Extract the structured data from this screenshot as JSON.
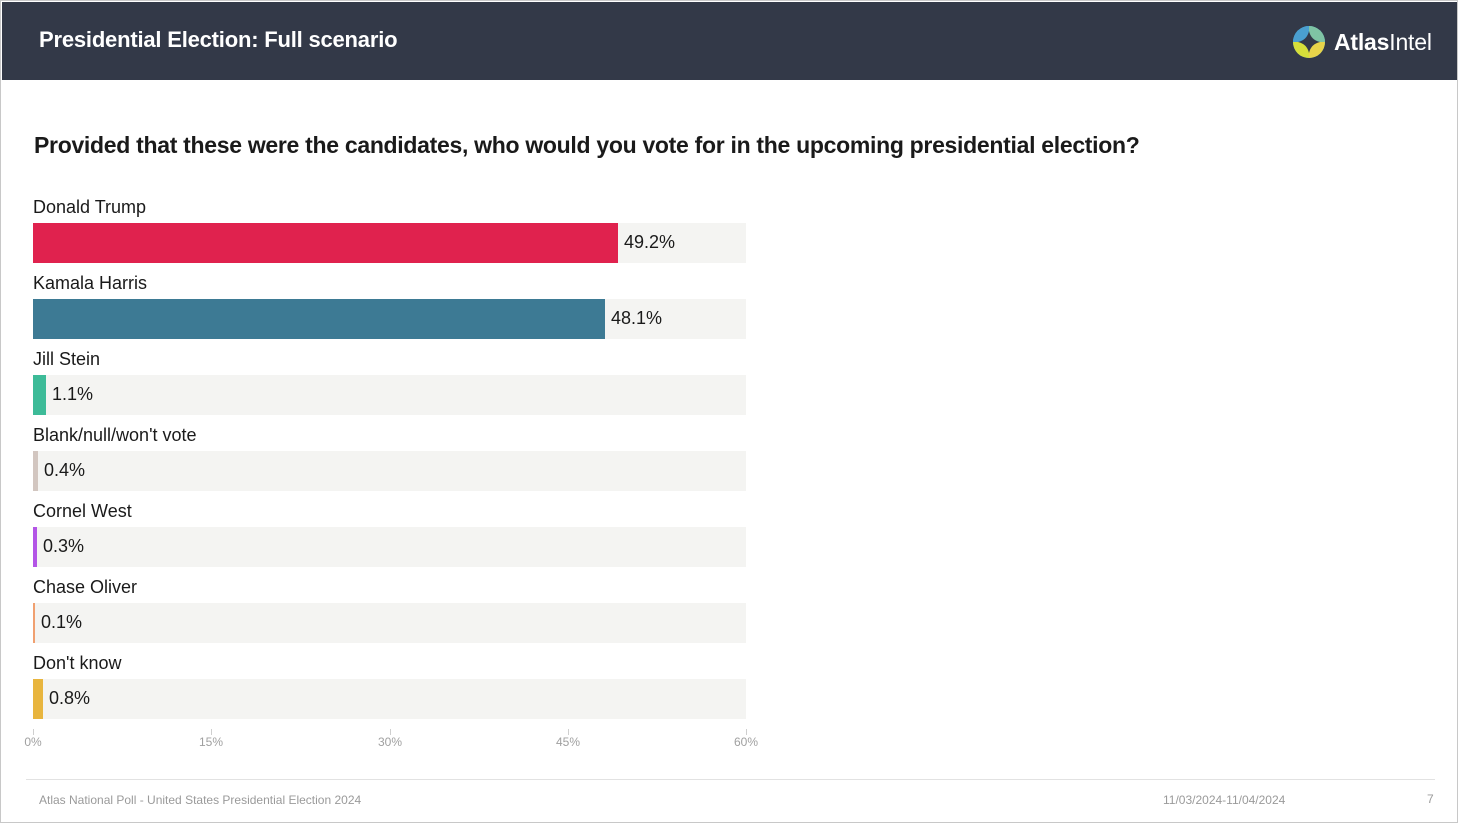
{
  "header": {
    "title": "Presidential Election: Full scenario",
    "brand_bold": "Atlas",
    "brand_regular": "Intel",
    "background_color": "#333948"
  },
  "question": "Provided that these were the candidates, who would you vote for in the upcoming presidential election?",
  "chart_data": {
    "type": "bar",
    "orientation": "horizontal",
    "title": "Provided that these were the candidates, who would you vote for in the upcoming presidential election?",
    "categories": [
      "Donald Trump",
      "Kamala Harris",
      "Jill Stein",
      "Blank/null/won't vote",
      "Cornel West",
      "Chase Oliver",
      "Don't know"
    ],
    "values": [
      49.2,
      48.1,
      1.1,
      0.4,
      0.3,
      0.1,
      0.8
    ],
    "value_labels": [
      "49.2%",
      "48.1%",
      "1.1%",
      "0.4%",
      "0.3%",
      "0.1%",
      "0.8%"
    ],
    "colors": [
      "#e0224e",
      "#3d7a94",
      "#3dbb98",
      "#d2c6c0",
      "#b355e6",
      "#f0a070",
      "#e8b53e"
    ],
    "track_color": "#f4f4f2",
    "xlim": [
      0,
      60
    ],
    "xticks": [
      0,
      15,
      30,
      45,
      60
    ],
    "xtick_labels": [
      "0%",
      "15%",
      "30%",
      "45%",
      "60%"
    ],
    "grid": false,
    "legend": "none"
  },
  "footer": {
    "source": "Atlas National Poll - United States Presidential Election 2024",
    "date_range": "11/03/2024-11/04/2024",
    "page_number": "7"
  }
}
